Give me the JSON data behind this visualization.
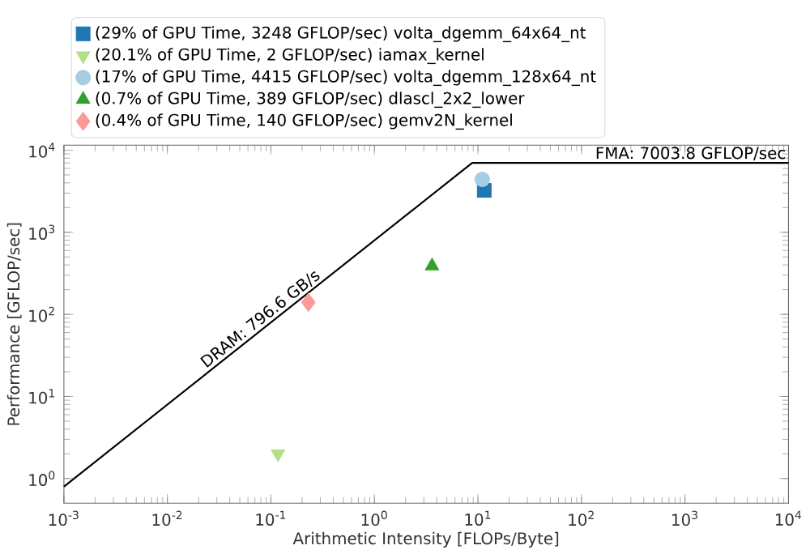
{
  "chart_data": {
    "type": "scatter",
    "xlabel": "Arithmetic Intensity [FLOPs/Byte]",
    "ylabel": "Performance [GFLOP/sec]",
    "log": "xy",
    "legend": "top left",
    "grid": false,
    "xlim": [
      0.001,
      10000
    ],
    "ylim": [
      0.5,
      11500
    ],
    "xticks": [
      {
        "value": 0.001,
        "label": "10$^{-3}$"
      },
      {
        "value": 0.01,
        "label": "10$^{-2}$"
      },
      {
        "value": 0.1,
        "label": "10$^{-1}$"
      },
      {
        "value": 1,
        "label": "10$^{0}$"
      },
      {
        "value": 10,
        "label": "10$^{1}$"
      },
      {
        "value": 100,
        "label": "10$^{2}$"
      },
      {
        "value": 1000,
        "label": "10$^{3}$"
      },
      {
        "value": 10000,
        "label": "10$^{4}$"
      }
    ],
    "yticks": [
      {
        "value": 1,
        "label": "10$^{0}$"
      },
      {
        "value": 10,
        "label": "10$^{1}$"
      },
      {
        "value": 100,
        "label": "10$^{2}$"
      },
      {
        "value": 1000,
        "label": "10$^{3}$"
      },
      {
        "value": 10000,
        "label": "10$^{4}$"
      }
    ],
    "series": [
      {
        "type": "line",
        "color": "#000000",
        "marker": "none",
        "x": [
          0.001,
          8.792,
          10000
        ],
        "values": [
          0.7966,
          7003.8,
          7003.8
        ]
      },
      {
        "name": "(29% of GPU Time, 3248 GFLOP/sec) volta_dgemm_64x64_nt",
        "color": "#1f77b4",
        "marker": "square",
        "x": [
          11.5
        ],
        "values": [
          3248
        ]
      },
      {
        "name": "(20.1% of GPU Time, 2 GFLOP/sec) iamax_kernel",
        "color": "#b2df8a",
        "marker": "triangle_down",
        "x": [
          0.117
        ],
        "values": [
          2
        ]
      },
      {
        "name": "(17% of GPU Time, 4415 GFLOP/sec) volta_dgemm_128x64_nt",
        "color": "#a6cee3",
        "marker": "circle",
        "x": [
          11
        ],
        "values": [
          4415
        ]
      },
      {
        "name": "(0.7% of GPU Time, 389 GFLOP/sec) dlascl_2x2_lower",
        "color": "#33a02c",
        "marker": "triangle",
        "x": [
          3.6
        ],
        "values": [
          389
        ]
      },
      {
        "name": "(0.4% of GPU Time, 140 GFLOP/sec) gemv2N_kernel",
        "color": "#fb9a99",
        "marker": "diamond",
        "x": [
          0.23
        ],
        "values": [
          140
        ]
      }
    ],
    "annotations": [
      {
        "text": "DRAM: 796.6 GB/s",
        "x": 0.09,
        "y": 72
      },
      {
        "text": "FMA: 7003.8 GFLOP/sec",
        "x": 10000,
        "y": 7003.8
      }
    ]
  }
}
